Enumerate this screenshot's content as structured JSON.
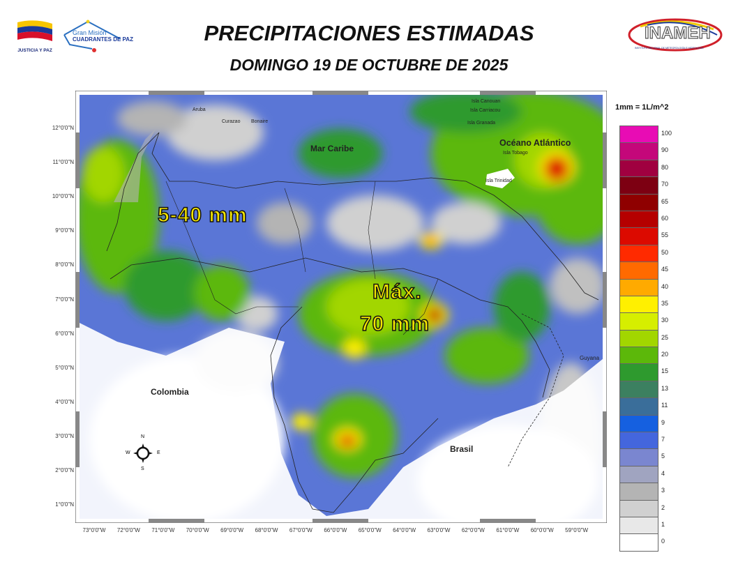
{
  "header": {
    "title": "PRECIPITACIONES ESTIMADAS",
    "subtitle": "DOMINGO 19 DE OCTUBRE DE 2025",
    "logo_left_1": "JUSTICIA Y PAZ",
    "logo_left_2_line1": "Gran Misión",
    "logo_left_2_line2": "CUADRANTES DE PAZ",
    "logo_right": "INAMEH",
    "logo_right_sub": "INSTITUTO NACIONAL DE METEOROLOGÍA E HIDROLOGÍA"
  },
  "map": {
    "lat_labels": [
      "12°0'0\"N",
      "11°0'0\"N",
      "10°0'0\"N",
      "9°0'0\"N",
      "8°0'0\"N",
      "7°0'0\"N",
      "6°0'0\"N",
      "5°0'0\"N",
      "4°0'0\"N",
      "3°0'0\"N",
      "2°0'0\"N",
      "1°0'0\"N"
    ],
    "lon_labels": [
      "73°0'0\"W",
      "72°0'0\"W",
      "71°0'0\"W",
      "70°0'0\"W",
      "69°0'0\"W",
      "68°0'0\"W",
      "67°0'0\"W",
      "66°0'0\"W",
      "65°0'0\"W",
      "64°0'0\"W",
      "63°0'0\"W",
      "62°0'0\"W",
      "61°0'0\"W",
      "60°0'0\"W",
      "59°0'0\"W"
    ],
    "places": {
      "mar_caribe": "Mar Caribe",
      "oceano": "Océano Atlántico",
      "colombia": "Colombia",
      "brasil": "Brasil",
      "guyana": "Guyana",
      "aruba": "Aruba",
      "curazao": "Curazao",
      "bonaire": "Bonaire",
      "canouan": "Isla Canouan",
      "carriacou": "Isla Carriacou",
      "granada": "Isla Granada",
      "tobago": "Isla Tobago",
      "trinidad": "Isla Trinidad"
    },
    "annotations": {
      "range": "5-40 mm",
      "max_line1": "Máx.",
      "max_line2": "70 mm"
    },
    "compass": {
      "n": "N",
      "s": "S",
      "e": "E",
      "w": "W"
    }
  },
  "legend": {
    "title": "1mm = 1L/m^2",
    "items": [
      {
        "label": "100",
        "color": "#e80cb4"
      },
      {
        "label": "90",
        "color": "#c4077a"
      },
      {
        "label": "80",
        "color": "#a00040"
      },
      {
        "label": "70",
        "color": "#7d0012"
      },
      {
        "label": "65",
        "color": "#8f0000"
      },
      {
        "label": "60",
        "color": "#b50000"
      },
      {
        "label": "55",
        "color": "#dc0a00"
      },
      {
        "label": "50",
        "color": "#ff2a00"
      },
      {
        "label": "45",
        "color": "#ff6a00"
      },
      {
        "label": "40",
        "color": "#ffaa00"
      },
      {
        "label": "35",
        "color": "#fff000"
      },
      {
        "label": "30",
        "color": "#d6ee00"
      },
      {
        "label": "25",
        "color": "#a2d600"
      },
      {
        "label": "20",
        "color": "#5cb80a"
      },
      {
        "label": "15",
        "color": "#2e9a2e"
      },
      {
        "label": "13",
        "color": "#3c8060"
      },
      {
        "label": "11",
        "color": "#3a6e9a"
      },
      {
        "label": "9",
        "color": "#1560e0"
      },
      {
        "label": "7",
        "color": "#4466dd"
      },
      {
        "label": "5",
        "color": "#7a86d0"
      },
      {
        "label": "4",
        "color": "#a0a4c0"
      },
      {
        "label": "3",
        "color": "#b4b4b4"
      },
      {
        "label": "2",
        "color": "#d0d0d0"
      },
      {
        "label": "1",
        "color": "#e8e8e8"
      },
      {
        "label": "0",
        "color": "#ffffff"
      }
    ]
  }
}
